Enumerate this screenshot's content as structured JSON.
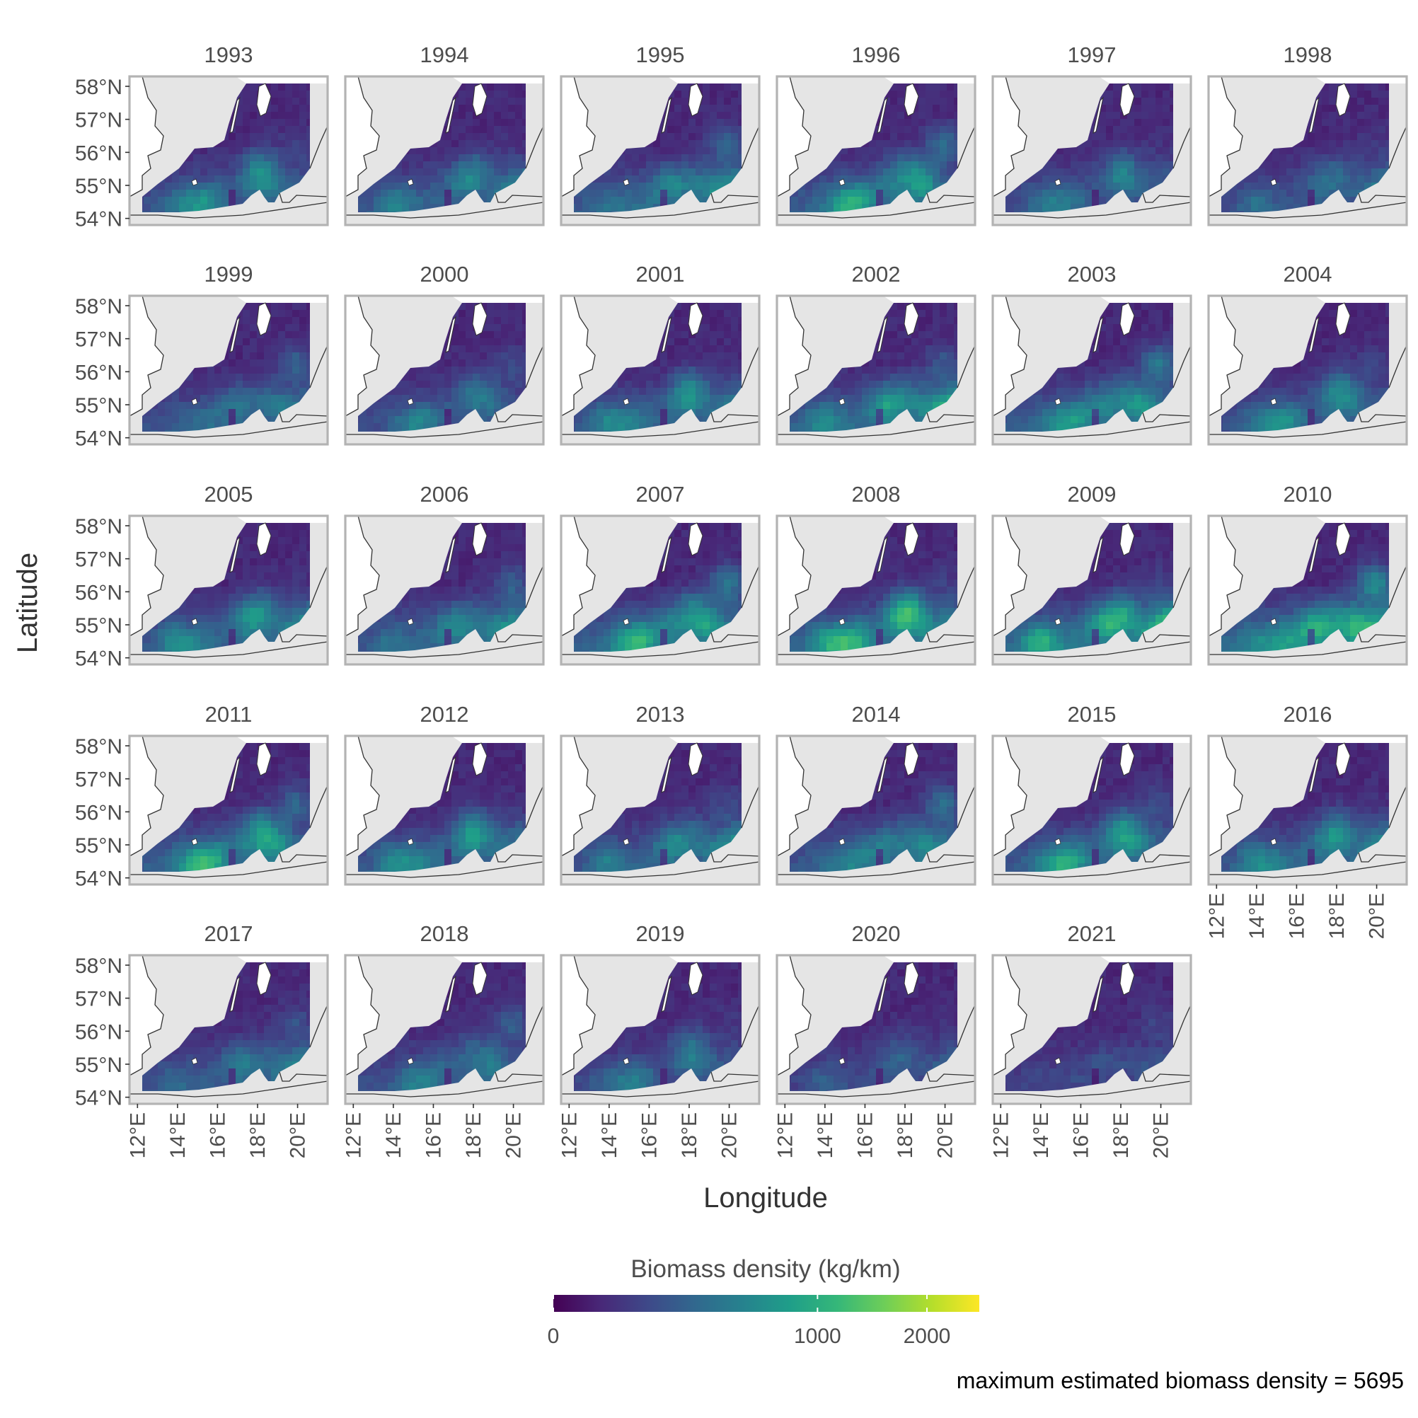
{
  "chart_data": {
    "type": "heatmap",
    "description_type": "faceted spatial heatmap (map panels)",
    "xlabel": "Longitude",
    "ylabel": "Latitude",
    "panels": [
      "1993",
      "1994",
      "1995",
      "1996",
      "1997",
      "1998",
      "1999",
      "2000",
      "2001",
      "2002",
      "2003",
      "2004",
      "2005",
      "2006",
      "2007",
      "2008",
      "2009",
      "2010",
      "2011",
      "2012",
      "2013",
      "2014",
      "2015",
      "2016",
      "2017",
      "2018",
      "2019",
      "2020",
      "2021"
    ],
    "x_ticks": [
      "12°E",
      "14°E",
      "16°E",
      "18°E",
      "20°E"
    ],
    "y_ticks": [
      "58°N",
      "57°N",
      "56°N",
      "55°N",
      "54°N"
    ],
    "xlim": [
      11.6,
      21.5
    ],
    "ylim": [
      53.8,
      58.3
    ],
    "legend": {
      "title": "Biomass density (kg/km)",
      "ticks": [
        "0",
        "1000",
        "2000"
      ],
      "tick_values": [
        0,
        1000,
        2000
      ],
      "range": [
        0,
        2600
      ],
      "scale": "square-root",
      "colormap": "viridis",
      "placement": "bottom",
      "colors": [
        "#440154",
        "#482878",
        "#3e4989",
        "#31688e",
        "#26828e",
        "#1f9e89",
        "#35b779",
        "#6ece58",
        "#b5de2b",
        "#fde725"
      ]
    },
    "caption": "maximum estimated biomass density = 5695",
    "panel_intensity": [
      0.9,
      0.9,
      1.1,
      1.2,
      0.75,
      0.75,
      0.9,
      0.75,
      0.95,
      1.3,
      1.25,
      0.9,
      1.05,
      1.1,
      1.35,
      1.35,
      1.5,
      1.7,
      1.25,
      1.0,
      1.05,
      1.1,
      1.1,
      1.0,
      0.9,
      0.85,
      0.7,
      0.55,
      0.45
    ],
    "colors": {
      "land": "#e5e5e5",
      "panel_border": "#b3b3b3",
      "coast": "#333333",
      "text": "#4d4d4d"
    }
  }
}
